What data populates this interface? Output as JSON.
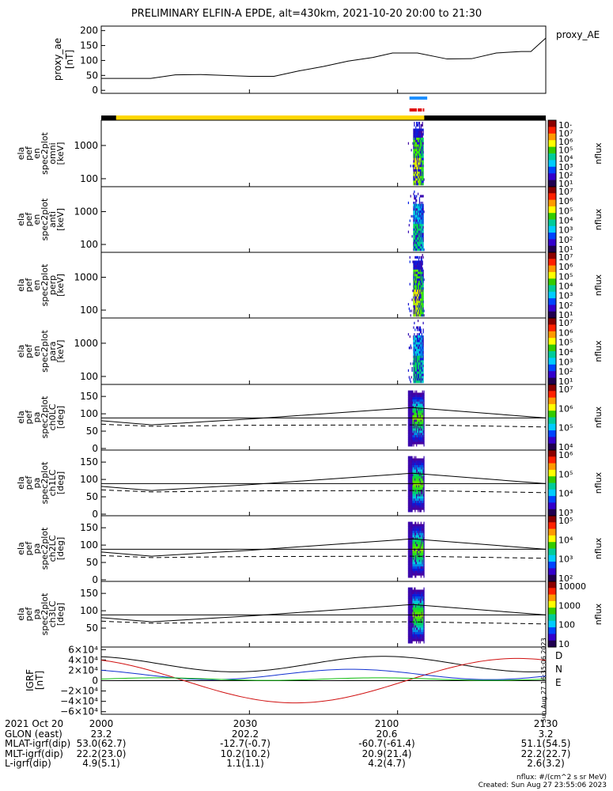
{
  "title": "PRELIMINARY ELFIN-A EPDE, alt=430km, 2021-10-20 20:00 to 21:30",
  "colors": {
    "blue_bar": "#1e90ff",
    "red_bar": "#e01010",
    "yellow": "#ffd700",
    "black": "#000000",
    "grf_d": "#d01010",
    "grf_n": "#1030d0",
    "grf_e": "#10c010"
  },
  "chart_data": [
    {
      "type": "line",
      "panel": "proxy_ae",
      "legend": "proxy_AE",
      "ylabel_lines": [
        "proxy_ae",
        "[nT]"
      ],
      "yticks": [
        0,
        50,
        100,
        150,
        200
      ],
      "ylim": [
        -10,
        215
      ],
      "x": [
        20.0,
        20.167,
        20.25,
        20.333,
        20.5,
        20.583,
        20.667,
        20.75,
        20.833,
        20.917,
        20.983,
        21.067,
        21.167,
        21.25,
        21.333,
        21.417,
        21.45,
        21.5
      ],
      "values": [
        40,
        40,
        52,
        53,
        47,
        47,
        65,
        80,
        98,
        110,
        125,
        125,
        105,
        106,
        125,
        130,
        130,
        175
      ]
    },
    {
      "type": "heatmap",
      "panel": "omni",
      "ylabel_lines": [
        "ela",
        "pef",
        "en",
        "spec2plot",
        "omni",
        "[keV]"
      ],
      "yticks": [
        "1000",
        "100"
      ],
      "cbar_label": "nflux",
      "cbar_ticks": [
        "10·",
        "10⁷",
        "10⁶",
        "10⁵",
        "10⁴",
        "10³",
        "10²",
        "10¹"
      ],
      "x_range": [
        21.03,
        21.09
      ]
    },
    {
      "type": "heatmap",
      "panel": "anti",
      "ylabel_lines": [
        "ela",
        "pef",
        "en",
        "spec2plot",
        "anti",
        "[keV]"
      ],
      "yticks": [
        "1000",
        "100"
      ],
      "cbar_label": "nflux",
      "cbar_ticks": [
        "10⁷",
        "10⁶",
        "10⁵",
        "10⁴",
        "10³",
        "10²",
        "10¹"
      ]
    },
    {
      "type": "heatmap",
      "panel": "perp",
      "ylabel_lines": [
        "ela",
        "pef",
        "en",
        "spec2plot",
        "perp",
        "[keV]"
      ],
      "yticks": [
        "1000",
        "100"
      ],
      "cbar_label": "nflux",
      "cbar_ticks": [
        "10⁷",
        "10⁶",
        "10⁵",
        "10⁴",
        "10³",
        "10²",
        "10¹"
      ]
    },
    {
      "type": "heatmap",
      "panel": "para",
      "ylabel_lines": [
        "ela",
        "pef",
        "en",
        "spec2plot",
        "para",
        "[keV]"
      ],
      "yticks": [
        "1000",
        "100"
      ],
      "cbar_label": "nflux",
      "cbar_ticks": [
        "10⁷",
        "10⁶",
        "10⁵",
        "10⁴",
        "10³",
        "10²",
        "10¹"
      ]
    },
    {
      "type": "heatmap",
      "panel": "ch0LC",
      "ylabel_lines": [
        "ela",
        "pef",
        "pa",
        "spec2plot",
        "ch0LC",
        "[deg]"
      ],
      "yticks": [
        0,
        50,
        100,
        150
      ],
      "cbar_label": "nflux",
      "cbar_ticks": [
        "10⁷",
        "10⁶",
        "10⁵",
        "10⁴"
      ]
    },
    {
      "type": "heatmap",
      "panel": "ch1LC",
      "ylabel_lines": [
        "ela",
        "pef",
        "pa",
        "spec2plot",
        "ch1LC",
        "[deg]"
      ],
      "yticks": [
        0,
        50,
        100,
        150
      ],
      "cbar_label": "nflux",
      "cbar_ticks": [
        "10⁶",
        "10⁵",
        "10⁴",
        "10³"
      ]
    },
    {
      "type": "heatmap",
      "panel": "ch2LC",
      "ylabel_lines": [
        "ela",
        "pef",
        "pa",
        "spec2plot",
        "ch2LC",
        "[deg]"
      ],
      "yticks": [
        0,
        50,
        100,
        150
      ],
      "cbar_label": "nflux",
      "cbar_ticks": [
        "10⁵",
        "10⁴",
        "10³",
        "10²"
      ]
    },
    {
      "type": "heatmap",
      "panel": "ch3LC",
      "ylabel_lines": [
        "ela",
        "pef",
        "pa",
        "spec2plot",
        "ch3LC",
        "[deg]"
      ],
      "yticks": [
        50,
        100,
        150
      ],
      "cbar_label": "nflux",
      "cbar_ticks": [
        "10000",
        "1000",
        "100",
        "10"
      ]
    },
    {
      "type": "line",
      "panel": "igrf",
      "ylabel_lines": [
        "IGRF",
        "[nT]"
      ],
      "yticks": [
        "6×10⁴",
        "4×10⁴",
        "2×10⁴",
        "0",
        "−2×10⁴",
        "−4×10⁴",
        "−6×10⁴"
      ],
      "legend": [
        "D",
        "N",
        "E"
      ]
    }
  ],
  "footer": {
    "rows": [
      {
        "label": "2021 Oct 20",
        "vals": [
          "2000",
          "2030",
          "2100",
          "2130"
        ]
      },
      {
        "label": "GLON (east)",
        "vals": [
          "23.2",
          "202.2",
          "20.6",
          "3.2"
        ]
      },
      {
        "label": "MLAT-igrf(dip)",
        "vals": [
          "53.0(62.7)",
          "-12.7(-0.7)",
          "-60.7(-61.4)",
          "51.1(54.5)"
        ]
      },
      {
        "label": "MLT-igrf(dip)",
        "vals": [
          "22.2(23.0)",
          "10.2(10.2)",
          "20.9(21.4)",
          "22.2(22.7)"
        ]
      },
      {
        "label": "L-igrf(dip)",
        "vals": [
          "4.9(5.1)",
          "1.1(1.1)",
          "4.2(4.7)",
          "2.6(3.2)"
        ]
      }
    ],
    "units_note": "nflux: #/(cm^2 s sr MeV)",
    "created": "Created: Sun Aug 27 23:55:06 2023",
    "side_stamp": "Sun Aug 27 16:35:06 2023"
  }
}
